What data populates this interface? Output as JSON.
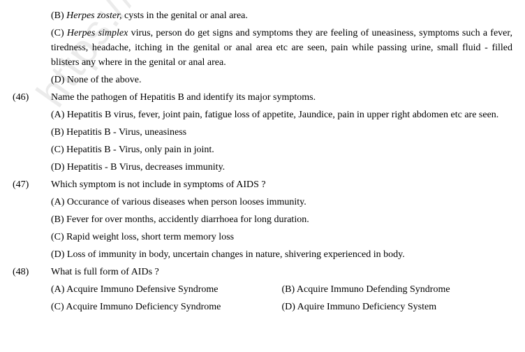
{
  "watermark": "https://www.st",
  "partial_q": {
    "optB_prefix": "(B) ",
    "optB_italic": "Herpes zoster,",
    "optB_rest": " cysts in the genital or anal area.",
    "optC_prefix": "(C) ",
    "optC_italic": "Herpes simplex",
    "optC_rest": " virus, person do get signs and symptoms they are feeling of uneasiness, symptoms such a fever, tiredness, headache, itching in the genital or anal area etc are seen, pain while passing urine, small fluid - filled blisters any where in the  genital or anal area.",
    "optD": "(D) None of the above."
  },
  "q46": {
    "num": "(46)",
    "text": "Name the pathogen of Hepatitis B and identify its major symptoms.",
    "optA": "(A) Hepatitis B virus, fever, joint pain, fatigue loss of appetite, Jaundice, pain in upper right abdomen etc are seen.",
    "optB": "(B) Hepatitis B - Virus, uneasiness",
    "optC": "(C) Hepatitis B - Virus, only pain in joint.",
    "optD": "(D) Hepatitis - B Virus, decreases immunity."
  },
  "q47": {
    "num": "(47)",
    "text": "Which symptom is not include in symptoms of AIDS ?",
    "optA": "(A) Occurance of various diseases when person looses immunity.",
    "optB": "(B) Fever for over months, accidently diarrhoea for long duration.",
    "optC": "(C) Rapid weight loss, short term memory loss",
    "optD": "(D) Loss of immunity in body, uncertain changes in nature, shivering experienced in body."
  },
  "q48": {
    "num": "(48)",
    "text": "What is full form of AIDs ?",
    "optA": "(A) Acquire Immuno Defensive Syndrome",
    "optB": "(B) Acquire Immuno Defending Syndrome",
    "optC": "(C) Acquire Immuno Deficiency Syndrome",
    "optD": "(D) Aquire Immuno Deficiency System"
  }
}
